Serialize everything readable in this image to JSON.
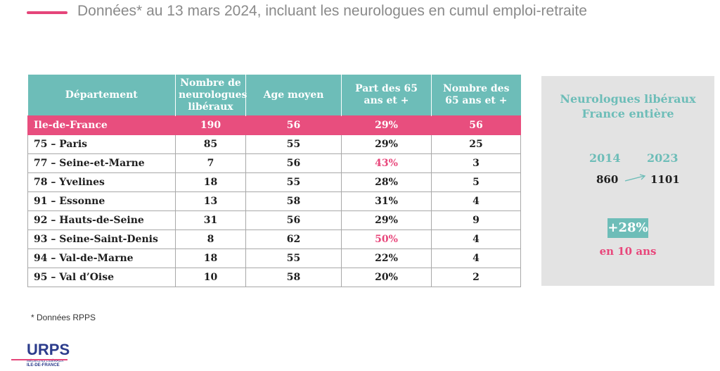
{
  "header": {
    "title": "Données* au 13 mars 2024, incluant les neurologues en cumul emploi-retraite"
  },
  "table": {
    "columns": [
      "Département",
      "Nombre de neurologues libéraux",
      "Age moyen",
      "Part des 65 ans et +",
      "Nombre des 65 ans et +"
    ],
    "rows": [
      {
        "dept": "Ile-de-France",
        "count": "190",
        "age": "56",
        "share": "29%",
        "n65": "56"
      },
      {
        "dept": "75 – Paris",
        "count": "85",
        "age": "55",
        "share": "29%",
        "n65": "25"
      },
      {
        "dept": "77 – Seine-et-Marne",
        "count": "7",
        "age": "56",
        "share": "43%",
        "n65": "3"
      },
      {
        "dept": "78 – Yvelines",
        "count": "18",
        "age": "55",
        "share": "28%",
        "n65": "5"
      },
      {
        "dept": "91 – Essonne",
        "count": "13",
        "age": "58",
        "share": "31%",
        "n65": "4"
      },
      {
        "dept": "92 – Hauts-de-Seine",
        "count": "31",
        "age": "56",
        "share": "29%",
        "n65": "9"
      },
      {
        "dept": "93 – Seine-Saint-Denis",
        "count": "8",
        "age": "62",
        "share": "50%",
        "n65": "4"
      },
      {
        "dept": "94 – Val-de-Marne",
        "count": "18",
        "age": "55",
        "share": "22%",
        "n65": "4"
      },
      {
        "dept": "95 – Val d’Oise",
        "count": "10",
        "age": "58",
        "share": "20%",
        "n65": "2"
      }
    ]
  },
  "panel": {
    "title_line1": "Neurologues libéraux",
    "title_line2": "France entière",
    "year1": "2014",
    "year2": "2023",
    "value1": "860",
    "value2": "1101",
    "growth": "+28%",
    "growth_caption": "en 10 ans"
  },
  "footnote": "* Données RPPS",
  "logo": {
    "text": "URPS",
    "sub1": "MÉDECINS LIBÉRAUX",
    "sub2": "ILE-DE-FRANCE"
  },
  "colors": {
    "accent_pink": "#e84e7e",
    "accent_teal": "#6dbdb8",
    "panel_bg": "#e3e3e3"
  }
}
